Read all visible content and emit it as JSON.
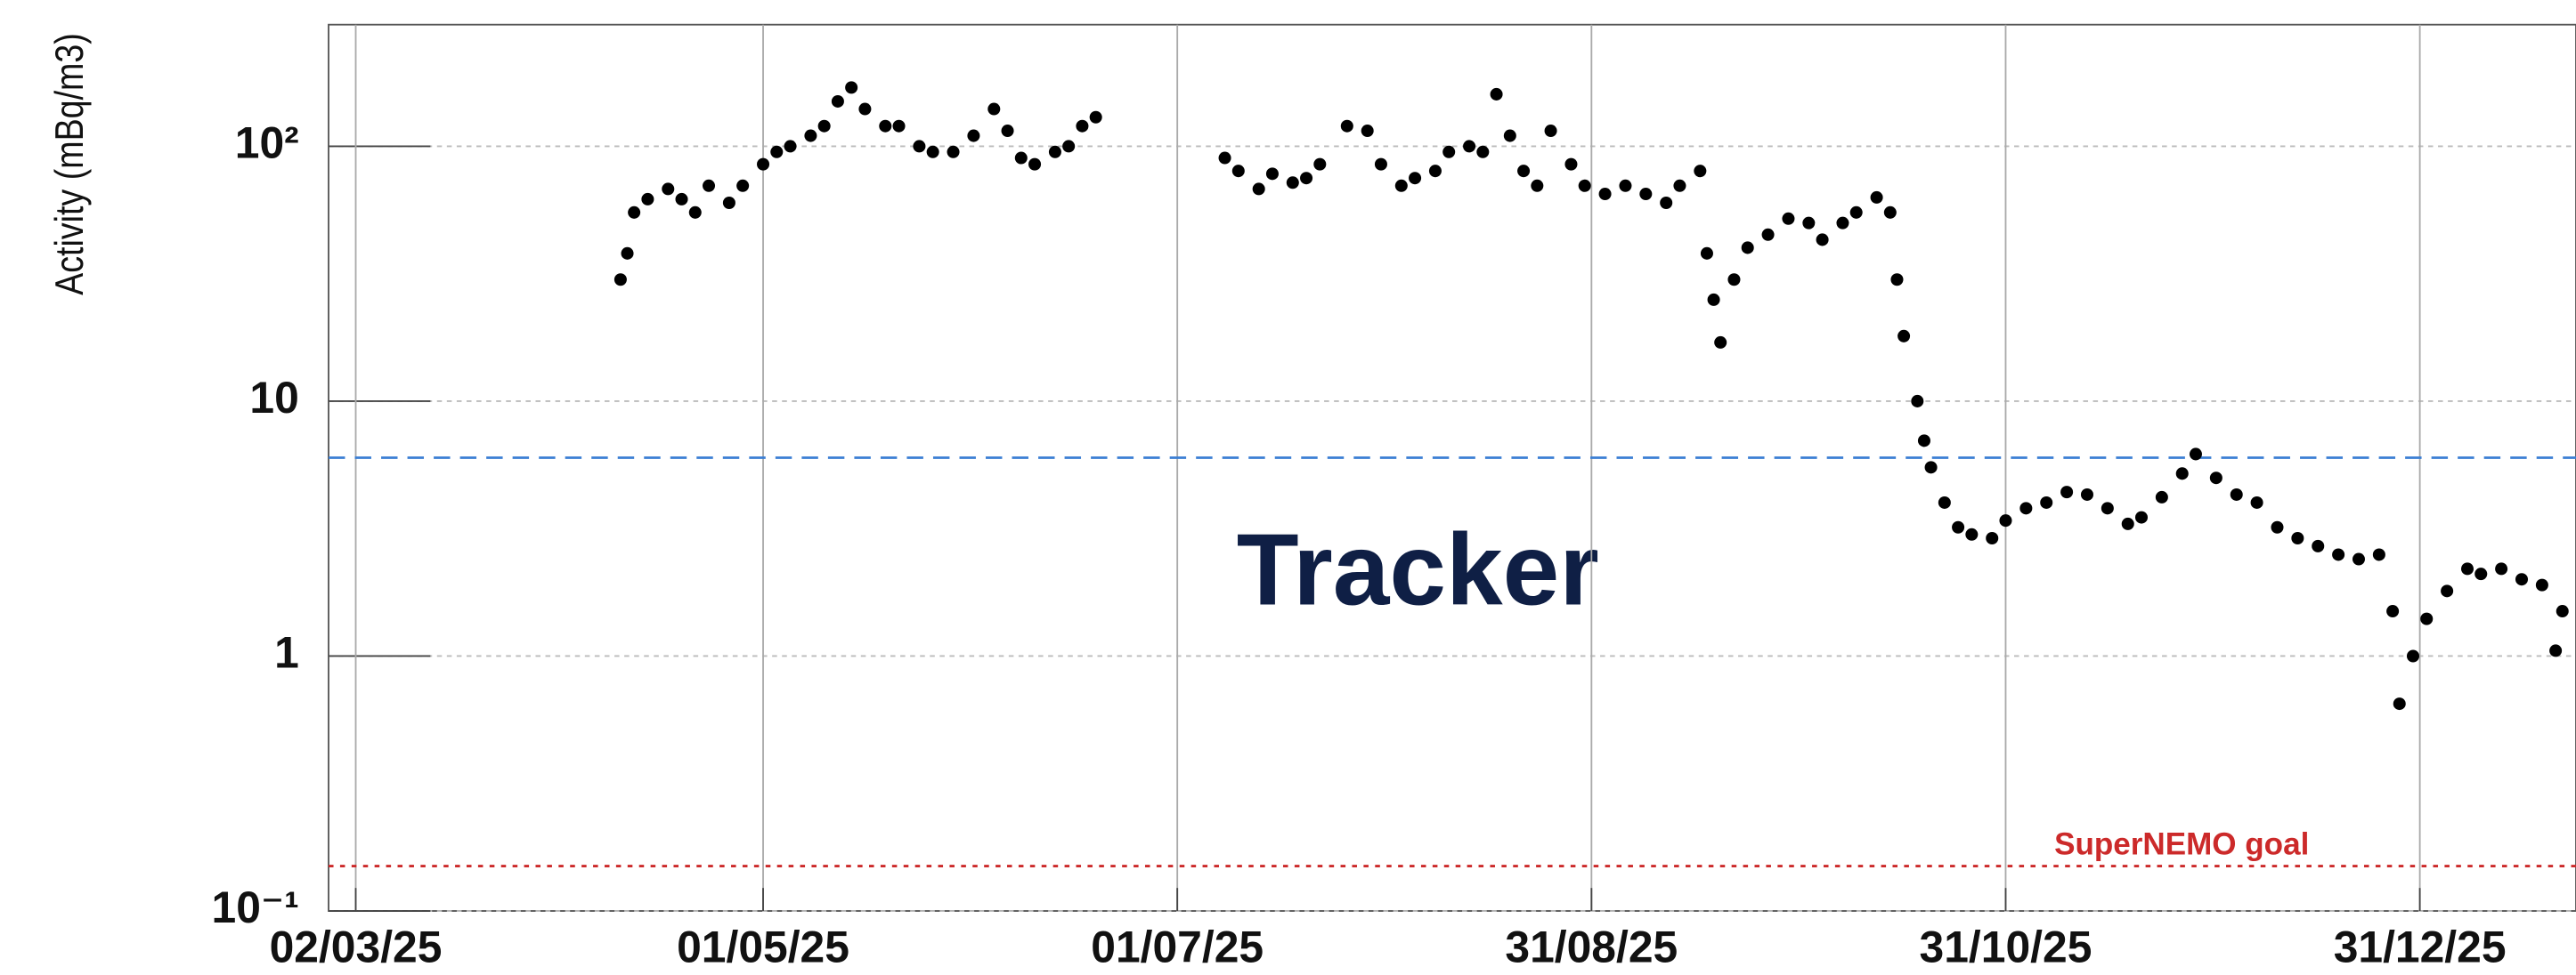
{
  "chart_data": {
    "type": "scatter",
    "y_label": "Activity (mBq/m3)",
    "annotation": "Tracker",
    "color": "#000000",
    "log_y": true,
    "grid": true,
    "xlim": [
      "2025-02-26",
      "2026-01-23"
    ],
    "xticks": [
      {
        "value": "2025-03-02",
        "label": "02/03/25"
      },
      {
        "value": "2025-05-01",
        "label": "01/05/25"
      },
      {
        "value": "2025-07-01",
        "label": "01/07/25"
      },
      {
        "value": "2025-08-31",
        "label": "31/08/25"
      },
      {
        "value": "2025-10-31",
        "label": "31/10/25"
      },
      {
        "value": "2025-12-31",
        "label": "31/12/25"
      }
    ],
    "ylim": [
      0.1,
      300
    ],
    "yticks": [
      {
        "value": 0.1,
        "label": "10⁻¹"
      },
      1,
      10,
      {
        "value": 100,
        "label": "10²"
      }
    ],
    "reference_lines": [
      {
        "value": 6,
        "color": "#3b7fd4"
      },
      {
        "value": 0.15,
        "color": "#cc2a2a",
        "label": "SuperNEMO goal"
      }
    ],
    "x": [
      "2025-04-10",
      "2025-04-11",
      "2025-04-12",
      "2025-04-14",
      "2025-04-17",
      "2025-04-19",
      "2025-04-21",
      "2025-04-23",
      "2025-04-26",
      "2025-04-28",
      "2025-05-01",
      "2025-05-03",
      "2025-05-05",
      "2025-05-08",
      "2025-05-10",
      "2025-05-12",
      "2025-05-14",
      "2025-05-16",
      "2025-05-19",
      "2025-05-21",
      "2025-05-24",
      "2025-05-26",
      "2025-05-29",
      "2025-06-01",
      "2025-06-04",
      "2025-06-06",
      "2025-06-08",
      "2025-06-10",
      "2025-06-13",
      "2025-06-15",
      "2025-06-17",
      "2025-06-19",
      "2025-07-08",
      "2025-07-10",
      "2025-07-13",
      "2025-07-15",
      "2025-07-18",
      "2025-07-20",
      "2025-07-22",
      "2025-07-26",
      "2025-07-29",
      "2025-07-31",
      "2025-08-03",
      "2025-08-05",
      "2025-08-08",
      "2025-08-10",
      "2025-08-13",
      "2025-08-15",
      "2025-08-17",
      "2025-08-19",
      "2025-08-21",
      "2025-08-23",
      "2025-08-25",
      "2025-08-28",
      "2025-08-30",
      "2025-09-02",
      "2025-09-05",
      "2025-09-08",
      "2025-09-11",
      "2025-09-13",
      "2025-09-16",
      "2025-09-17",
      "2025-09-18",
      "2025-09-19",
      "2025-09-21",
      "2025-09-23",
      "2025-09-26",
      "2025-09-29",
      "2025-10-02",
      "2025-10-04",
      "2025-10-07",
      "2025-10-09",
      "2025-10-12",
      "2025-10-14",
      "2025-10-15",
      "2025-10-16",
      "2025-10-18",
      "2025-10-19",
      "2025-10-20",
      "2025-10-22",
      "2025-10-24",
      "2025-10-26",
      "2025-10-29",
      "2025-10-31",
      "2025-11-03",
      "2025-11-06",
      "2025-11-09",
      "2025-11-12",
      "2025-11-15",
      "2025-11-18",
      "2025-11-20",
      "2025-11-23",
      "2025-11-26",
      "2025-11-28",
      "2025-12-01",
      "2025-12-04",
      "2025-12-07",
      "2025-12-10",
      "2025-12-13",
      "2025-12-16",
      "2025-12-19",
      "2025-12-22",
      "2025-12-25",
      "2025-12-27",
      "2025-12-28",
      "2025-12-30",
      "2026-01-01",
      "2026-01-04",
      "2026-01-07",
      "2026-01-09",
      "2026-01-12",
      "2026-01-15",
      "2026-01-18",
      "2026-01-20",
      "2026-01-21"
    ],
    "values": [
      30,
      38,
      55,
      62,
      68,
      62,
      55,
      70,
      60,
      70,
      85,
      95,
      100,
      110,
      120,
      150,
      170,
      140,
      120,
      120,
      100,
      95,
      95,
      110,
      140,
      115,
      90,
      85,
      95,
      100,
      120,
      130,
      90,
      80,
      68,
      78,
      72,
      75,
      85,
      120,
      115,
      85,
      70,
      75,
      80,
      95,
      100,
      95,
      160,
      110,
      80,
      70,
      115,
      85,
      70,
      65,
      70,
      65,
      60,
      70,
      80,
      38,
      25,
      17,
      30,
      40,
      45,
      52,
      50,
      43,
      50,
      55,
      63,
      55,
      30,
      18,
      10,
      7,
      5.5,
      4,
      3.2,
      3,
      2.9,
      3.4,
      3.8,
      4,
      4.4,
      4.3,
      3.8,
      3.3,
      3.5,
      4.2,
      5.2,
      6.2,
      5,
      4.3,
      4,
      3.2,
      2.9,
      2.7,
      2.5,
      2.4,
      2.5,
      1.5,
      0.65,
      1,
      1.4,
      1.8,
      2.2,
      2.1,
      2.2,
      2,
      1.9,
      1.05,
      1.5
    ]
  }
}
